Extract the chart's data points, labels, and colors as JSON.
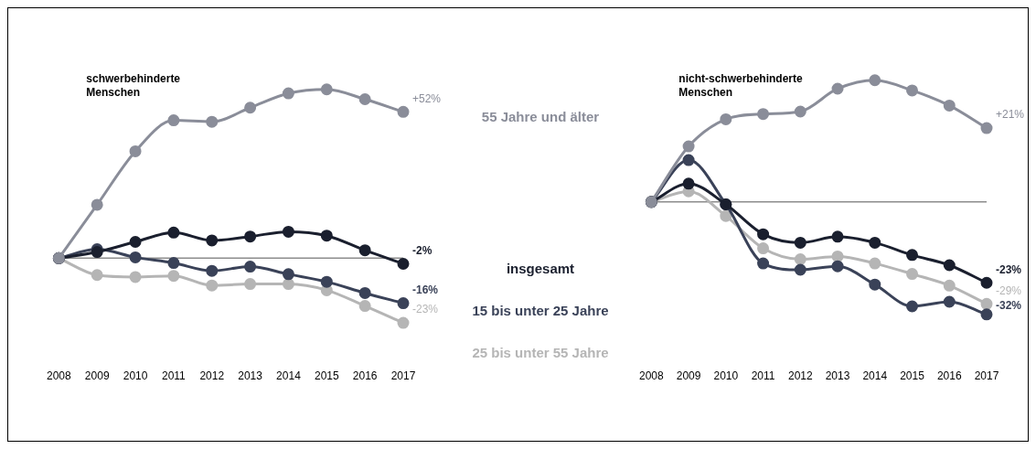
{
  "chart_data": [
    {
      "type": "line",
      "title": "schwerbehinderte Menschen",
      "categories": [
        "2008",
        "2009",
        "2010",
        "2011",
        "2012",
        "2013",
        "2014",
        "2015",
        "2016",
        "2017"
      ],
      "tick_labels": "x",
      "grid": false,
      "legend": false,
      "marker": "circle",
      "ref_lines": [
        {
          "axis": "y",
          "value": 0,
          "color": "#8c8c8c"
        }
      ],
      "series": [
        {
          "name": "55 Jahre und älter",
          "color": "#8a8d99",
          "values": [
            0,
            19,
            38,
            49,
            48.5,
            53.5,
            58.6,
            60,
            56.5,
            52
          ],
          "value_labels": [
            null,
            null,
            null,
            null,
            null,
            null,
            null,
            null,
            null,
            "+52%"
          ]
        },
        {
          "name": "insgesamt",
          "color": "#1a1f2e",
          "values": [
            0,
            2.2,
            5.8,
            9.1,
            6.3,
            7.7,
            9.4,
            8,
            2.8,
            -2
          ],
          "value_labels": [
            null,
            null,
            null,
            null,
            null,
            null,
            null,
            null,
            null,
            "-2%"
          ]
        },
        {
          "name": "15 bis unter 25 Jahre",
          "color": "#3a4258",
          "values": [
            0,
            3.2,
            0.3,
            -1.7,
            -4.5,
            -3,
            -5.7,
            -8.4,
            -12.4,
            -16
          ],
          "value_labels": [
            null,
            null,
            null,
            null,
            null,
            null,
            null,
            null,
            null,
            "-16%"
          ]
        },
        {
          "name": "25 bis unter 55 Jahre",
          "color": "#b5b5b5",
          "values": [
            0,
            -6,
            -6.7,
            -6.3,
            -9.7,
            -9.2,
            -9.2,
            -11.4,
            -17,
            -23
          ],
          "value_labels": [
            null,
            null,
            null,
            null,
            null,
            null,
            null,
            null,
            null,
            "-23%"
          ]
        }
      ]
    },
    {
      "type": "line",
      "title": "nicht-schwerbehinderte Menschen",
      "categories": [
        "2008",
        "2009",
        "2010",
        "2011",
        "2012",
        "2013",
        "2014",
        "2015",
        "2016",
        "2017"
      ],
      "tick_labels": "x",
      "grid": false,
      "legend": false,
      "marker": "circle",
      "ref_lines": [
        {
          "axis": "y",
          "value": 0,
          "color": "#8c8c8c"
        }
      ],
      "series": [
        {
          "color": "#8a8d99",
          "values": [
            0,
            15.8,
            23.5,
            25,
            25.7,
            32.2,
            34.6,
            31.7,
            27.4,
            21
          ],
          "value_labels": [
            null,
            null,
            null,
            null,
            null,
            null,
            null,
            null,
            null,
            "+21%"
          ]
        },
        {
          "color": "#1a1f2e",
          "values": [
            0,
            5.2,
            -0.7,
            -9.2,
            -11.6,
            -9.9,
            -11.6,
            -15.1,
            -18,
            -23
          ],
          "value_labels": [
            null,
            null,
            null,
            null,
            null,
            null,
            null,
            null,
            null,
            "-23%"
          ]
        },
        {
          "color": "#3a4258",
          "values": [
            0,
            11.9,
            -0.7,
            -17.5,
            -19.3,
            -18.3,
            -23.5,
            -29.7,
            -28.4,
            -32
          ],
          "value_labels": [
            null,
            null,
            null,
            null,
            null,
            null,
            null,
            null,
            null,
            "-32%"
          ]
        },
        {
          "color": "#b5b5b5",
          "values": [
            0,
            3,
            -4,
            -13.2,
            -16.3,
            -15.5,
            -17.5,
            -20.5,
            -23.8,
            -29
          ],
          "value_labels": [
            null,
            null,
            null,
            null,
            null,
            null,
            null,
            null,
            null,
            "-29%"
          ]
        }
      ]
    }
  ]
}
